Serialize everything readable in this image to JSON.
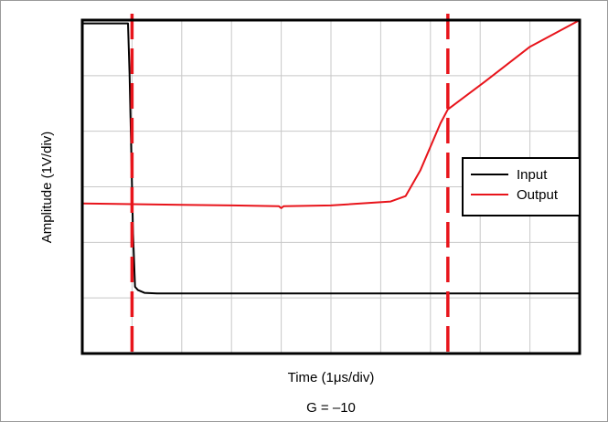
{
  "chart_data": {
    "type": "line",
    "xlabel": "Time (1μs/div)",
    "ylabel": "Amplitude (1V/div)",
    "caption": "G = –10",
    "xlim": [
      0,
      10
    ],
    "ylim": [
      0,
      5
    ],
    "grid": true,
    "legend_position": "right",
    "series": [
      {
        "name": "Input",
        "color": "#000000",
        "points": [
          [
            0,
            4.95
          ],
          [
            0.92,
            4.95
          ],
          [
            0.95,
            4.2
          ],
          [
            0.98,
            3.2
          ],
          [
            1.02,
            1.8
          ],
          [
            1.06,
            1.0
          ],
          [
            1.12,
            0.95
          ],
          [
            1.25,
            0.91
          ],
          [
            1.5,
            0.9
          ],
          [
            3,
            0.9
          ],
          [
            5,
            0.9
          ],
          [
            8,
            0.9
          ],
          [
            10,
            0.9
          ]
        ]
      },
      {
        "name": "Output",
        "color": "#e8141b",
        "points": [
          [
            0,
            2.25
          ],
          [
            1.0,
            2.24
          ],
          [
            2,
            2.23
          ],
          [
            3,
            2.22
          ],
          [
            3.95,
            2.21
          ],
          [
            4.0,
            2.18
          ],
          [
            4.05,
            2.21
          ],
          [
            5,
            2.22
          ],
          [
            6.2,
            2.28
          ],
          [
            6.5,
            2.36
          ],
          [
            6.8,
            2.75
          ],
          [
            7.2,
            3.45
          ],
          [
            7.35,
            3.66
          ],
          [
            8.1,
            4.08
          ],
          [
            9,
            4.6
          ],
          [
            10,
            5.15
          ]
        ]
      }
    ],
    "markers": [
      {
        "type": "vline",
        "x": 1.0,
        "style": "dashed",
        "color": "#e8141b"
      },
      {
        "type": "vline",
        "x": 7.35,
        "style": "dashed",
        "color": "#e8141b"
      }
    ]
  }
}
